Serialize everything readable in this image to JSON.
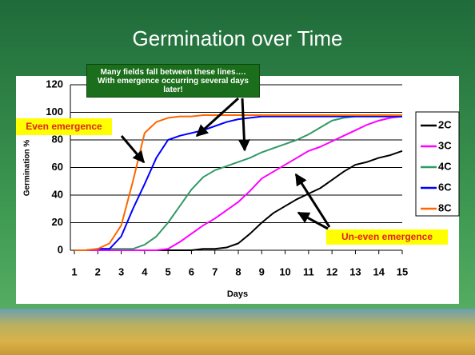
{
  "chart_data": {
    "type": "line",
    "title": "Germination over Time",
    "x_label": "Days",
    "y_label": "Germination %",
    "x": [
      1,
      1.5,
      2,
      2.5,
      3,
      3.5,
      4,
      4.5,
      5,
      5.5,
      6,
      6.5,
      7,
      7.5,
      8,
      8.5,
      9,
      9.5,
      10,
      10.5,
      11,
      11.5,
      12,
      12.5,
      13,
      13.5,
      14,
      14.5,
      15
    ],
    "series": [
      {
        "name": "2C",
        "color": "#000000",
        "values": [
          0,
          0,
          0,
          0,
          0,
          0,
          0,
          0,
          0,
          0,
          0,
          1,
          1,
          2,
          5,
          12,
          20,
          27,
          32,
          37,
          41,
          45,
          51,
          57,
          62,
          64,
          67,
          69,
          72
        ]
      },
      {
        "name": "3C",
        "color": "#ff00ff",
        "values": [
          0,
          0,
          0,
          0,
          0,
          0,
          0,
          0,
          1,
          6,
          12,
          18,
          23,
          29,
          35,
          43,
          52,
          57,
          62,
          67,
          72,
          75,
          79,
          83,
          87,
          91,
          94,
          96,
          97
        ]
      },
      {
        "name": "4C",
        "color": "#339966",
        "values": [
          0,
          0,
          1,
          1,
          1,
          1,
          4,
          10,
          20,
          32,
          44,
          53,
          58,
          61,
          64,
          67,
          71,
          74,
          77,
          80,
          84,
          89,
          94,
          96,
          97,
          97,
          97,
          97,
          97
        ]
      },
      {
        "name": "6C",
        "color": "#0000ff",
        "values": [
          0,
          0,
          1,
          1,
          10,
          30,
          48,
          67,
          80,
          83,
          85,
          87,
          90,
          93,
          95,
          96,
          97,
          97,
          97,
          97,
          97,
          97,
          97,
          97,
          97,
          97,
          97,
          97,
          97
        ]
      },
      {
        "name": "8C",
        "color": "#ff6600",
        "values": [
          0,
          0,
          1,
          5,
          18,
          50,
          85,
          93,
          96,
          97,
          97,
          98,
          98,
          98,
          98,
          98,
          98,
          98,
          98,
          98,
          98,
          98,
          98,
          98,
          98,
          98,
          98,
          98,
          98
        ]
      }
    ],
    "xlim": [
      1,
      15
    ],
    "xticks": [
      1,
      2,
      3,
      4,
      5,
      6,
      7,
      8,
      9,
      10,
      11,
      12,
      13,
      14,
      15
    ],
    "ylim": [
      0,
      120
    ],
    "yticks": [
      0,
      20,
      40,
      60,
      80,
      100,
      120
    ],
    "grid": true,
    "legend": "right",
    "annotations": [
      "Many fields fall between these lines…. With emergence occurring several days later!",
      "Even emergence",
      "Un-even emergence"
    ]
  }
}
